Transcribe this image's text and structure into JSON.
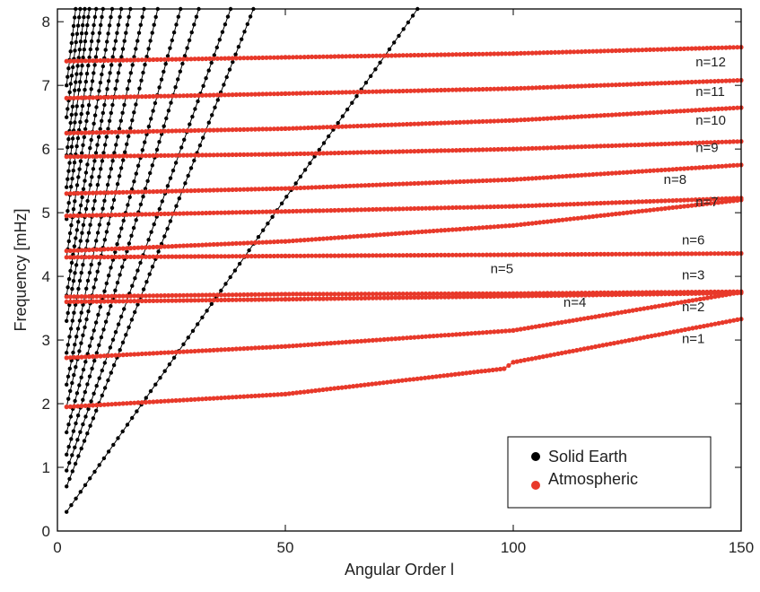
{
  "chart_data": {
    "type": "scatter",
    "xlabel": "Angular Order l",
    "ylabel": "Frequency [mHz]",
    "xlim": [
      0,
      150
    ],
    "ylim": [
      0,
      8.2
    ],
    "xticks": [
      0,
      50,
      100,
      150
    ],
    "yticks": [
      0,
      1,
      2,
      3,
      4,
      5,
      6,
      7,
      8
    ],
    "grid": false,
    "legend": {
      "placement": "bottom-right",
      "entries": [
        {
          "label": "Solid Earth",
          "color": "#000000"
        },
        {
          "label": "Atmospheric",
          "color": "#e8392a"
        }
      ]
    },
    "colors": {
      "solid_earth": "#000000",
      "atmospheric": "#e8392a"
    },
    "series": [
      {
        "name": "n=1",
        "group": "Atmospheric",
        "x": [
          2,
          50,
          98,
          100,
          150
        ],
        "y": [
          1.95,
          2.15,
          2.55,
          2.65,
          3.33
        ],
        "label_at": [
          137,
          2.95
        ]
      },
      {
        "name": "n=2",
        "group": "Atmospheric",
        "x": [
          2,
          50,
          100,
          150
        ],
        "y": [
          2.72,
          2.9,
          3.15,
          3.75
        ],
        "label_at": [
          137,
          3.45
        ]
      },
      {
        "name": "n=3",
        "group": "Atmospheric",
        "x": [
          2,
          50,
          100,
          150
        ],
        "y": [
          3.6,
          3.64,
          3.69,
          3.74
        ],
        "label_at": [
          137,
          3.95
        ]
      },
      {
        "name": "n=4",
        "group": "Atmospheric",
        "x": [
          2,
          50,
          100,
          150
        ],
        "y": [
          3.68,
          3.72,
          3.73,
          3.76
        ],
        "label_at": [
          111,
          3.52
        ]
      },
      {
        "name": "n=5",
        "group": "Atmospheric",
        "x": [
          2,
          50,
          100,
          150
        ],
        "y": [
          4.3,
          4.32,
          4.34,
          4.36
        ],
        "label_at": [
          95,
          4.05
        ]
      },
      {
        "name": "n=6",
        "group": "Atmospheric",
        "x": [
          2,
          50,
          100,
          150
        ],
        "y": [
          4.4,
          4.55,
          4.8,
          5.2
        ],
        "label_at": [
          137,
          4.5
        ]
      },
      {
        "name": "n=7",
        "group": "Atmospheric",
        "x": [
          2,
          50,
          100,
          150
        ],
        "y": [
          4.95,
          5.02,
          5.1,
          5.23
        ],
        "label_at": [
          140,
          5.1
        ]
      },
      {
        "name": "n=8",
        "group": "Atmospheric",
        "x": [
          2,
          50,
          100,
          150
        ],
        "y": [
          5.3,
          5.38,
          5.52,
          5.75
        ],
        "label_at": [
          133,
          5.45
        ]
      },
      {
        "name": "n=9",
        "group": "Atmospheric",
        "x": [
          2,
          50,
          100,
          150
        ],
        "y": [
          5.88,
          5.92,
          6.0,
          6.12
        ],
        "label_at": [
          140,
          5.95
        ]
      },
      {
        "name": "n=10",
        "group": "Atmospheric",
        "x": [
          2,
          50,
          100,
          150
        ],
        "y": [
          6.25,
          6.32,
          6.45,
          6.65
        ],
        "label_at": [
          140,
          6.38
        ]
      },
      {
        "name": "n=11",
        "group": "Atmospheric",
        "x": [
          2,
          50,
          100,
          150
        ],
        "y": [
          6.8,
          6.87,
          6.95,
          7.08
        ],
        "label_at": [
          140,
          6.83
        ]
      },
      {
        "name": "n=12",
        "group": "Atmospheric",
        "x": [
          2,
          50,
          100,
          150
        ],
        "y": [
          7.38,
          7.44,
          7.5,
          7.6
        ],
        "label_at": [
          140,
          7.3
        ]
      },
      {
        "name": "",
        "group": "Solid Earth",
        "x": [
          2,
          79
        ],
        "y": [
          0.3,
          8.2
        ]
      },
      {
        "name": "",
        "group": "Solid Earth",
        "x": [
          2,
          43
        ],
        "y": [
          0.7,
          8.2
        ]
      },
      {
        "name": "",
        "group": "Solid Earth",
        "x": [
          2,
          38
        ],
        "y": [
          0.95,
          8.2
        ]
      },
      {
        "name": "",
        "group": "Solid Earth",
        "x": [
          2,
          31
        ],
        "y": [
          1.2,
          8.2
        ]
      },
      {
        "name": "",
        "group": "Solid Earth",
        "x": [
          2,
          27
        ],
        "y": [
          1.55,
          8.2
        ]
      },
      {
        "name": "",
        "group": "Solid Earth",
        "x": [
          2,
          22
        ],
        "y": [
          1.95,
          8.2
        ]
      },
      {
        "name": "",
        "group": "Solid Earth",
        "x": [
          2,
          19
        ],
        "y": [
          2.3,
          8.2
        ]
      },
      {
        "name": "",
        "group": "Solid Earth",
        "x": [
          2,
          16
        ],
        "y": [
          2.8,
          8.2
        ]
      },
      {
        "name": "",
        "group": "Solid Earth",
        "x": [
          2,
          14
        ],
        "y": [
          3.3,
          8.2
        ]
      },
      {
        "name": "",
        "group": "Solid Earth",
        "x": [
          2,
          12
        ],
        "y": [
          3.7,
          8.2
        ]
      },
      {
        "name": "",
        "group": "Solid Earth",
        "x": [
          2,
          10
        ],
        "y": [
          4.3,
          8.2
        ]
      },
      {
        "name": "",
        "group": "Solid Earth",
        "x": [
          2,
          8.5
        ],
        "y": [
          4.9,
          8.2
        ]
      },
      {
        "name": "",
        "group": "Solid Earth",
        "x": [
          2,
          7
        ],
        "y": [
          5.4,
          8.2
        ]
      },
      {
        "name": "",
        "group": "Solid Earth",
        "x": [
          2,
          6
        ],
        "y": [
          5.9,
          8.2
        ]
      },
      {
        "name": "",
        "group": "Solid Earth",
        "x": [
          2,
          5
        ],
        "y": [
          6.5,
          8.2
        ]
      },
      {
        "name": "",
        "group": "Solid Earth",
        "x": [
          2,
          4
        ],
        "y": [
          7.0,
          8.2
        ]
      }
    ]
  }
}
